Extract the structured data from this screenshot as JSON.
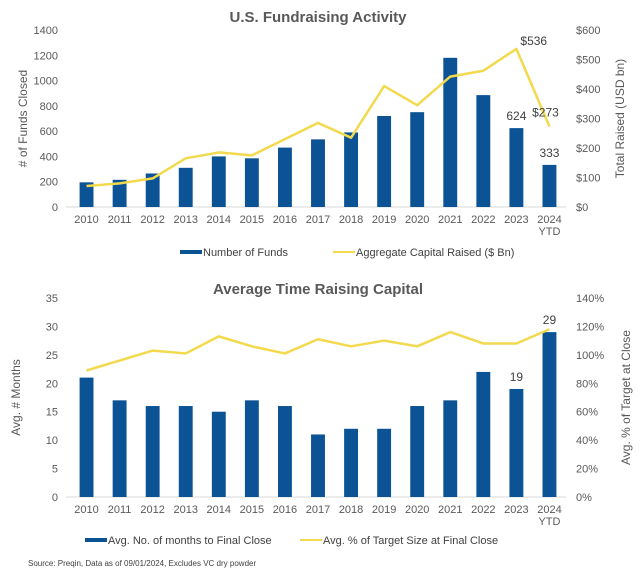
{
  "chart_data": [
    {
      "type": "bar",
      "title": "U.S. Fundraising Activity",
      "categories": [
        "2010",
        "2011",
        "2012",
        "2013",
        "2014",
        "2015",
        "2016",
        "2017",
        "2018",
        "2019",
        "2020",
        "2021",
        "2022",
        "2023",
        "2024\nYTD"
      ],
      "ylabel": "# of Funds Closed",
      "y2label": "Total Raised (USD bn)",
      "ylim": [
        0,
        1400
      ],
      "yticks": [
        0,
        200,
        400,
        600,
        800,
        1000,
        1200,
        1400
      ],
      "y2lim": [
        0,
        600
      ],
      "y2ticks": [
        "$0",
        "$100",
        "$200",
        "$300",
        "$400",
        "$500",
        "$600"
      ],
      "y2tickvalues": [
        0,
        100,
        200,
        300,
        400,
        500,
        600
      ],
      "series": [
        {
          "name": "Number of Funds",
          "type": "bar",
          "axis": "left",
          "color": "#0B5394",
          "values": [
            195,
            215,
            265,
            310,
            400,
            385,
            470,
            535,
            590,
            720,
            750,
            1180,
            885,
            624,
            333
          ],
          "labels": {
            "13": "624",
            "14": "333"
          }
        },
        {
          "name": "Aggregate Capital Raised ($ Bn)",
          "type": "line",
          "axis": "right",
          "color": "#F2D94E",
          "values": [
            71,
            80,
            97,
            165,
            185,
            175,
            230,
            285,
            235,
            410,
            345,
            442,
            462,
            536,
            273
          ],
          "labels": {
            "13": "$536",
            "14": "$273"
          }
        }
      ],
      "legend": "bottom",
      "grid": false
    },
    {
      "type": "bar",
      "title": "Average Time Raising Capital",
      "categories": [
        "2010",
        "2011",
        "2012",
        "2013",
        "2014",
        "2015",
        "2016",
        "2017",
        "2018",
        "2019",
        "2020",
        "2021",
        "2022",
        "2023",
        "2024\nYTD"
      ],
      "ylabel": "Avg. # Months",
      "y2label": "Avg. % of Target at Close",
      "ylim": [
        0,
        35
      ],
      "yticks": [
        0,
        5,
        10,
        15,
        20,
        25,
        30,
        35
      ],
      "y2lim": [
        0,
        140
      ],
      "y2ticks": [
        "0%",
        "20%",
        "40%",
        "60%",
        "80%",
        "100%",
        "120%",
        "140%"
      ],
      "y2tickvalues": [
        0,
        20,
        40,
        60,
        80,
        100,
        120,
        140
      ],
      "series": [
        {
          "name": "Avg. No. of months to Final Close",
          "type": "bar",
          "axis": "left",
          "color": "#0B5394",
          "values": [
            21,
            17,
            16,
            16,
            15,
            17,
            16,
            11,
            12,
            12,
            16,
            17,
            22,
            19,
            29
          ],
          "labels": {
            "13": "19",
            "14": "29"
          }
        },
        {
          "name": "Avg. % of Target Size at Final Close",
          "type": "line",
          "axis": "right",
          "color": "#F2D94E",
          "values": [
            89,
            96,
            103,
            101,
            113,
            106,
            101,
            111,
            106,
            110,
            106,
            116,
            108,
            108,
            118
          ],
          "labels": {}
        }
      ],
      "legend": "bottom",
      "grid": false
    }
  ],
  "source_note": "Source: Preqin, Data as of 09/01/2024, Excludes VC dry powder"
}
